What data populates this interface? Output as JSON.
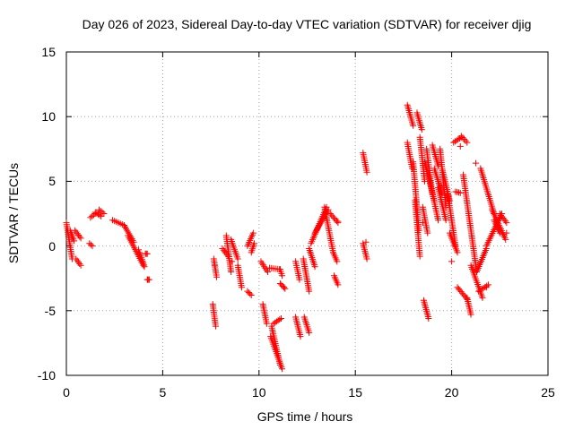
{
  "chart_data": {
    "type": "scatter",
    "title": "Day 026 of 2023, Sidereal Day-to-day VTEC variation (SDTVAR) for receiver djig",
    "xlabel": "GPS time / hours",
    "ylabel": "SDTVAR / TECUs",
    "xlim": [
      0,
      25
    ],
    "ylim": [
      -10,
      15
    ],
    "x_ticks": [
      "0",
      "5",
      "10",
      "15",
      "20",
      "25"
    ],
    "y_ticks": [
      "-10",
      "-5",
      "0",
      "5",
      "10",
      "15"
    ],
    "grid": true,
    "marker": "plus",
    "color": "#ff0000",
    "segments": [
      {
        "x": [
          0.0,
          0.3
        ],
        "y": [
          1.8,
          -1.0
        ]
      },
      {
        "x": [
          0.2,
          0.4
        ],
        "y": [
          1.2,
          0.4
        ]
      },
      {
        "x": [
          0.45,
          0.75
        ],
        "y": [
          1.2,
          0.6
        ]
      },
      {
        "x": [
          0.5,
          0.75
        ],
        "y": [
          -1.0,
          -1.5
        ]
      },
      {
        "x": [
          1.2,
          1.35
        ],
        "y": [
          0.2,
          0.0
        ]
      },
      {
        "x": [
          1.25,
          1.5
        ],
        "y": [
          2.2,
          2.5
        ]
      },
      {
        "x": [
          1.5,
          1.8
        ],
        "y": [
          2.6,
          2.3
        ]
      },
      {
        "x": [
          1.7,
          1.95
        ],
        "y": [
          2.8,
          2.5
        ]
      },
      {
        "x": [
          2.4,
          3.0
        ],
        "y": [
          2.0,
          1.6
        ]
      },
      {
        "x": [
          3.0,
          3.5
        ],
        "y": [
          1.6,
          0.3
        ]
      },
      {
        "x": [
          3.2,
          4.0
        ],
        "y": [
          0.8,
          -1.5
        ]
      },
      {
        "x": [
          3.8,
          4.05
        ],
        "y": [
          -0.5,
          -1.6
        ]
      },
      {
        "x": [
          4.1,
          4.2
        ],
        "y": [
          -0.6,
          -0.6
        ]
      },
      {
        "x": [
          4.2,
          4.25
        ],
        "y": [
          -2.6,
          -2.6
        ]
      },
      {
        "x": [
          7.65,
          7.8
        ],
        "y": [
          -1.0,
          -2.4
        ]
      },
      {
        "x": [
          7.6,
          7.75
        ],
        "y": [
          -4.5,
          -6.2
        ]
      },
      {
        "x": [
          8.1,
          8.4
        ],
        "y": [
          -0.2,
          -0.8
        ]
      },
      {
        "x": [
          8.3,
          8.55
        ],
        "y": [
          0.8,
          -2.0
        ]
      },
      {
        "x": [
          8.55,
          8.9
        ],
        "y": [
          0.5,
          -1.0
        ]
      },
      {
        "x": [
          8.9,
          9.1
        ],
        "y": [
          -1.5,
          -3.2
        ]
      },
      {
        "x": [
          9.4,
          9.7
        ],
        "y": [
          0.0,
          1.0
        ]
      },
      {
        "x": [
          9.4,
          9.6
        ],
        "y": [
          -3.5,
          -3.8
        ]
      },
      {
        "x": [
          9.6,
          9.75
        ],
        "y": [
          -0.5,
          0.2
        ]
      },
      {
        "x": [
          10.1,
          10.45
        ],
        "y": [
          -1.2,
          -2.0
        ]
      },
      {
        "x": [
          10.2,
          10.4
        ],
        "y": [
          -4.5,
          -6.0
        ]
      },
      {
        "x": [
          10.55,
          11.05
        ],
        "y": [
          -1.7,
          -1.8
        ]
      },
      {
        "x": [
          10.6,
          11.2
        ],
        "y": [
          -7.0,
          -9.5
        ]
      },
      {
        "x": [
          10.65,
          11.1
        ],
        "y": [
          -6.2,
          -9.2
        ]
      },
      {
        "x": [
          10.75,
          11.15
        ],
        "y": [
          -6.0,
          -5.6
        ]
      },
      {
        "x": [
          11.1,
          11.35
        ],
        "y": [
          -2.9,
          -3.3
        ]
      },
      {
        "x": [
          11.1,
          11.2
        ],
        "y": [
          -1.8,
          -2.3
        ]
      },
      {
        "x": [
          11.9,
          12.1
        ],
        "y": [
          -1.2,
          -2.6
        ]
      },
      {
        "x": [
          11.9,
          12.15
        ],
        "y": [
          -5.5,
          -7.0
        ]
      },
      {
        "x": [
          12.3,
          12.6
        ],
        "y": [
          -1.0,
          -3.5
        ]
      },
      {
        "x": [
          12.35,
          12.6
        ],
        "y": [
          -5.5,
          -6.7
        ]
      },
      {
        "x": [
          12.6,
          12.9
        ],
        "y": [
          -0.2,
          -1.6
        ]
      },
      {
        "x": [
          12.7,
          13.5
        ],
        "y": [
          0.2,
          3.0
        ]
      },
      {
        "x": [
          12.9,
          13.6
        ],
        "y": [
          1.0,
          2.8
        ]
      },
      {
        "x": [
          13.4,
          13.85
        ],
        "y": [
          3.0,
          -0.5
        ]
      },
      {
        "x": [
          13.7,
          14.1
        ],
        "y": [
          2.5,
          1.8
        ]
      },
      {
        "x": [
          13.85,
          14.05
        ],
        "y": [
          -0.5,
          -1.2
        ]
      },
      {
        "x": [
          13.9,
          14.1
        ],
        "y": [
          -2.3,
          -3.0
        ]
      },
      {
        "x": [
          15.4,
          15.6
        ],
        "y": [
          7.2,
          5.7
        ]
      },
      {
        "x": [
          15.4,
          15.6
        ],
        "y": [
          0.2,
          -1.0
        ]
      },
      {
        "x": [
          17.7,
          18.0
        ],
        "y": [
          10.9,
          9.3
        ]
      },
      {
        "x": [
          17.7,
          17.95
        ],
        "y": [
          8.0,
          6.0
        ]
      },
      {
        "x": [
          18.0,
          18.3
        ],
        "y": [
          6.5,
          1.2
        ]
      },
      {
        "x": [
          18.1,
          18.35
        ],
        "y": [
          3.5,
          -0.8
        ]
      },
      {
        "x": [
          18.2,
          18.45
        ],
        "y": [
          10.3,
          9.0
        ]
      },
      {
        "x": [
          18.35,
          18.6
        ],
        "y": [
          8.4,
          5.0
        ]
      },
      {
        "x": [
          18.5,
          18.75
        ],
        "y": [
          3.0,
          1.0
        ]
      },
      {
        "x": [
          18.55,
          18.8
        ],
        "y": [
          -4.2,
          -5.6
        ]
      },
      {
        "x": [
          18.6,
          19.1
        ],
        "y": [
          6.5,
          3.5
        ]
      },
      {
        "x": [
          18.7,
          19.0
        ],
        "y": [
          7.5,
          4.0
        ]
      },
      {
        "x": [
          18.8,
          19.3
        ],
        "y": [
          5.5,
          2.0
        ]
      },
      {
        "x": [
          19.0,
          19.3
        ],
        "y": [
          7.8,
          6.2
        ]
      },
      {
        "x": [
          19.1,
          19.5
        ],
        "y": [
          6.0,
          4.0
        ]
      },
      {
        "x": [
          19.3,
          19.7
        ],
        "y": [
          4.5,
          2.0
        ]
      },
      {
        "x": [
          19.4,
          19.7
        ],
        "y": [
          7.5,
          3.0
        ]
      },
      {
        "x": [
          19.5,
          19.9
        ],
        "y": [
          6.0,
          3.5
        ]
      },
      {
        "x": [
          19.8,
          20.2
        ],
        "y": [
          4.0,
          0.0
        ]
      },
      {
        "x": [
          19.9,
          20.3
        ],
        "y": [
          1.0,
          -0.5
        ]
      },
      {
        "x": [
          20.1,
          20.5
        ],
        "y": [
          8.0,
          8.4
        ]
      },
      {
        "x": [
          20.2,
          20.45
        ],
        "y": [
          4.2,
          4.1
        ]
      },
      {
        "x": [
          20.3,
          20.8
        ],
        "y": [
          -3.2,
          -4.1
        ]
      },
      {
        "x": [
          20.5,
          20.8
        ],
        "y": [
          8.5,
          8.0
        ]
      },
      {
        "x": [
          20.6,
          21.3
        ],
        "y": [
          5.5,
          -2.0
        ]
      },
      {
        "x": [
          20.8,
          21.0
        ],
        "y": [
          -4.0,
          -5.3
        ]
      },
      {
        "x": [
          21.0,
          21.6
        ],
        "y": [
          -1.5,
          -4.0
        ]
      },
      {
        "x": [
          21.3,
          21.8
        ],
        "y": [
          -2.0,
          -0.2
        ]
      },
      {
        "x": [
          21.4,
          21.9
        ],
        "y": [
          -3.5,
          -3.0
        ]
      },
      {
        "x": [
          21.5,
          22.2
        ],
        "y": [
          6.0,
          2.5
        ]
      },
      {
        "x": [
          21.8,
          22.6
        ],
        "y": [
          0.0,
          2.5
        ]
      },
      {
        "x": [
          22.1,
          22.8
        ],
        "y": [
          2.8,
          0.5
        ]
      },
      {
        "x": [
          22.2,
          22.5
        ],
        "y": [
          2.0,
          1.0
        ]
      },
      {
        "x": [
          22.5,
          22.85
        ],
        "y": [
          2.5,
          1.8
        ]
      }
    ],
    "points": [
      {
        "x": 3.75,
        "y": -0.3
      },
      {
        "x": 3.95,
        "y": -1.2
      },
      {
        "x": 4.3,
        "y": -2.6
      },
      {
        "x": 7.7,
        "y": -1.5
      },
      {
        "x": 8.6,
        "y": -1.2
      },
      {
        "x": 11.3,
        "y": -3.2
      },
      {
        "x": 14.1,
        "y": 1.9
      },
      {
        "x": 15.55,
        "y": 0.3
      },
      {
        "x": 18.5,
        "y": 1.8
      },
      {
        "x": 20.0,
        "y": -1.2
      },
      {
        "x": 20.45,
        "y": 7.7
      },
      {
        "x": 21.25,
        "y": 6.4
      },
      {
        "x": 21.8,
        "y": -3.2
      },
      {
        "x": 22.85,
        "y": 1.0
      }
    ]
  }
}
